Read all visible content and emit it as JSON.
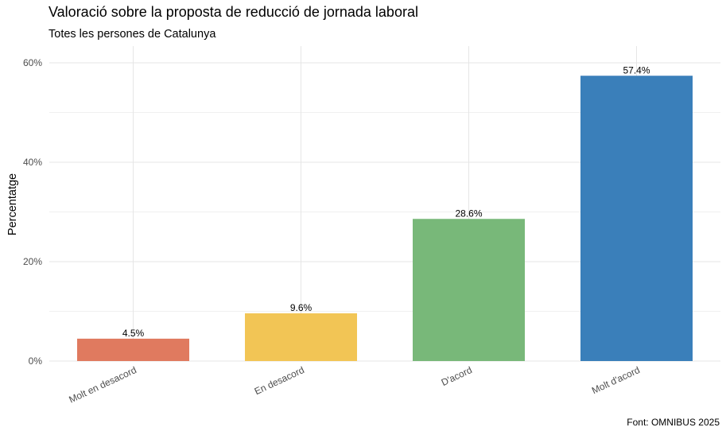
{
  "title": "Valoració sobre la proposta de reducció de jornada laboral",
  "subtitle": "Totes les persones de Catalunya",
  "caption": "Font: OMNIBUS 2025",
  "chart_data": {
    "type": "bar",
    "categories": [
      "Molt en desacord",
      "En desacord",
      "D'acord",
      "Molt d'acord"
    ],
    "values": [
      4.5,
      9.6,
      28.6,
      57.4
    ],
    "value_labels": [
      "4.5%",
      "9.6%",
      "28.6%",
      "57.4%"
    ],
    "colors": [
      "#E07A5F",
      "#F2C555",
      "#78B879",
      "#3A7FBA"
    ],
    "xlabel": "",
    "ylabel": "Percentatge",
    "ylim": [
      0,
      63
    ],
    "yticks": [
      0,
      20,
      40,
      60
    ],
    "ytick_labels": [
      "0%",
      "20%",
      "40%",
      "60%"
    ],
    "grid": true,
    "legend": "none"
  }
}
